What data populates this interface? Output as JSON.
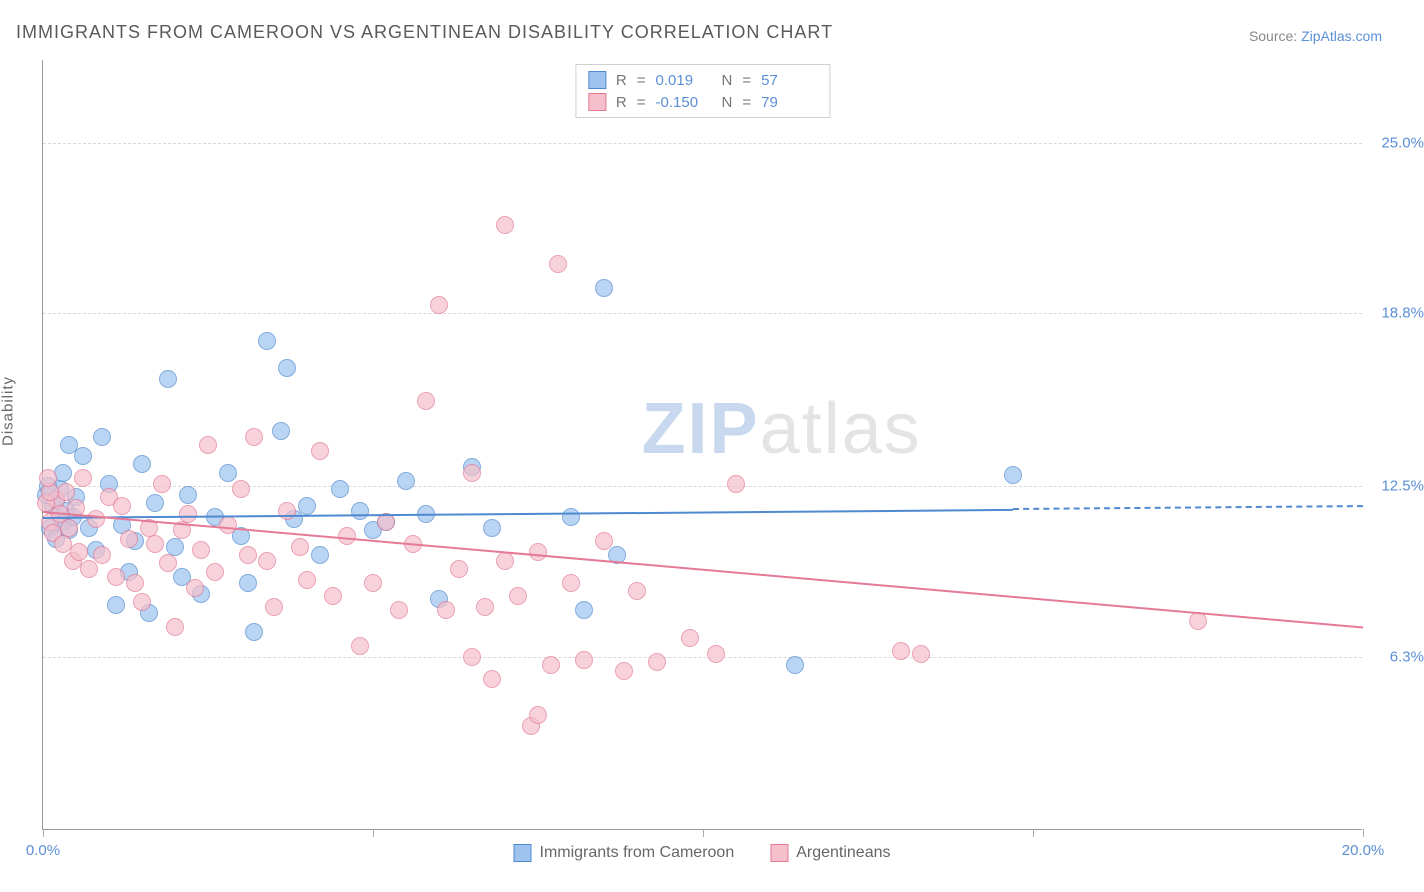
{
  "title": "IMMIGRANTS FROM CAMEROON VS ARGENTINEAN DISABILITY CORRELATION CHART",
  "source_prefix": "Source: ",
  "source_link": "ZipAtlas.com",
  "y_axis_label": "Disability",
  "watermark": {
    "zip": "ZIP",
    "atlas": "atlas"
  },
  "chart": {
    "type": "scatter",
    "xlim": [
      0,
      20
    ],
    "ylim": [
      0,
      28
    ],
    "y_gridlines": [
      6.3,
      12.5,
      18.8,
      25.0
    ],
    "y_tick_labels": [
      "6.3%",
      "12.5%",
      "18.8%",
      "25.0%"
    ],
    "x_ticks": [
      0,
      5,
      10,
      15,
      20
    ],
    "x_tick_labels": {
      "0": "0.0%",
      "20": "20.0%"
    },
    "grid_color": "#d8d8d8",
    "axis_color": "#999999",
    "background_color": "#ffffff",
    "tick_label_color": "#5b8fd6",
    "tick_label_fontsize": 15,
    "dot_radius": 9,
    "dot_border_width": 1.5,
    "dot_fill_opacity": 0.35,
    "series": [
      {
        "key": "cameroon",
        "label": "Immigrants from Cameroon",
        "color_fill": "#9ec3ee",
        "color_stroke": "#4f89d0",
        "R": "0.019",
        "N": "57",
        "trend": {
          "y_at_x0": 11.4,
          "y_at_x20": 11.8,
          "solid_until_x": 14.7
        },
        "points": [
          [
            0.1,
            11.0
          ],
          [
            0.15,
            11.8
          ],
          [
            0.2,
            12.0
          ],
          [
            0.2,
            10.6
          ],
          [
            0.25,
            12.4
          ],
          [
            0.3,
            13.0
          ],
          [
            0.3,
            11.2
          ],
          [
            0.35,
            11.6
          ],
          [
            0.4,
            14.0
          ],
          [
            0.4,
            10.9
          ],
          [
            0.45,
            11.4
          ],
          [
            0.5,
            12.1
          ],
          [
            0.6,
            13.6
          ],
          [
            0.7,
            11.0
          ],
          [
            0.8,
            10.2
          ],
          [
            0.9,
            14.3
          ],
          [
            1.0,
            12.6
          ],
          [
            1.1,
            8.2
          ],
          [
            1.2,
            11.1
          ],
          [
            1.3,
            9.4
          ],
          [
            1.4,
            10.5
          ],
          [
            1.5,
            13.3
          ],
          [
            1.6,
            7.9
          ],
          [
            1.7,
            11.9
          ],
          [
            1.9,
            16.4
          ],
          [
            2.0,
            10.3
          ],
          [
            2.1,
            9.2
          ],
          [
            2.2,
            12.2
          ],
          [
            2.4,
            8.6
          ],
          [
            2.6,
            11.4
          ],
          [
            2.8,
            13.0
          ],
          [
            3.0,
            10.7
          ],
          [
            3.1,
            9.0
          ],
          [
            3.2,
            7.2
          ],
          [
            3.4,
            17.8
          ],
          [
            3.6,
            14.5
          ],
          [
            3.7,
            16.8
          ],
          [
            3.8,
            11.3
          ],
          [
            4.0,
            11.8
          ],
          [
            4.2,
            10.0
          ],
          [
            4.5,
            12.4
          ],
          [
            4.8,
            11.6
          ],
          [
            5.0,
            10.9
          ],
          [
            5.2,
            11.2
          ],
          [
            5.5,
            12.7
          ],
          [
            5.8,
            11.5
          ],
          [
            6.0,
            8.4
          ],
          [
            6.5,
            13.2
          ],
          [
            6.8,
            11.0
          ],
          [
            8.0,
            11.4
          ],
          [
            8.2,
            8.0
          ],
          [
            8.5,
            19.7
          ],
          [
            8.7,
            10.0
          ],
          [
            11.4,
            6.0
          ],
          [
            14.7,
            12.9
          ],
          [
            0.05,
            12.2
          ],
          [
            0.08,
            12.5
          ]
        ]
      },
      {
        "key": "argentineans",
        "label": "Argentineans",
        "color_fill": "#f5bfcb",
        "color_stroke": "#e47a96",
        "R": "-0.150",
        "N": "79",
        "trend": {
          "y_at_x0": 11.6,
          "y_at_x20": 7.4,
          "solid_until_x": 20
        },
        "points": [
          [
            0.1,
            11.2
          ],
          [
            0.15,
            10.8
          ],
          [
            0.2,
            12.0
          ],
          [
            0.25,
            11.5
          ],
          [
            0.3,
            10.4
          ],
          [
            0.35,
            12.3
          ],
          [
            0.4,
            11.0
          ],
          [
            0.45,
            9.8
          ],
          [
            0.5,
            11.7
          ],
          [
            0.55,
            10.1
          ],
          [
            0.6,
            12.8
          ],
          [
            0.7,
            9.5
          ],
          [
            0.8,
            11.3
          ],
          [
            0.9,
            10.0
          ],
          [
            1.0,
            12.1
          ],
          [
            1.1,
            9.2
          ],
          [
            1.2,
            11.8
          ],
          [
            1.3,
            10.6
          ],
          [
            1.4,
            9.0
          ],
          [
            1.5,
            8.3
          ],
          [
            1.6,
            11.0
          ],
          [
            1.7,
            10.4
          ],
          [
            1.8,
            12.6
          ],
          [
            1.9,
            9.7
          ],
          [
            2.0,
            7.4
          ],
          [
            2.1,
            10.9
          ],
          [
            2.2,
            11.5
          ],
          [
            2.3,
            8.8
          ],
          [
            2.4,
            10.2
          ],
          [
            2.5,
            14.0
          ],
          [
            2.6,
            9.4
          ],
          [
            2.8,
            11.1
          ],
          [
            3.0,
            12.4
          ],
          [
            3.1,
            10.0
          ],
          [
            3.2,
            14.3
          ],
          [
            3.4,
            9.8
          ],
          [
            3.5,
            8.1
          ],
          [
            3.7,
            11.6
          ],
          [
            3.9,
            10.3
          ],
          [
            4.0,
            9.1
          ],
          [
            4.2,
            13.8
          ],
          [
            4.4,
            8.5
          ],
          [
            4.6,
            10.7
          ],
          [
            4.8,
            6.7
          ],
          [
            5.0,
            9.0
          ],
          [
            5.2,
            11.2
          ],
          [
            5.4,
            8.0
          ],
          [
            5.6,
            10.4
          ],
          [
            5.8,
            15.6
          ],
          [
            6.0,
            19.1
          ],
          [
            6.1,
            8.0
          ],
          [
            6.3,
            9.5
          ],
          [
            6.5,
            13.0
          ],
          [
            6.5,
            6.3
          ],
          [
            6.7,
            8.1
          ],
          [
            6.8,
            5.5
          ],
          [
            7.0,
            9.8
          ],
          [
            7.0,
            22.0
          ],
          [
            7.2,
            8.5
          ],
          [
            7.4,
            3.8
          ],
          [
            7.5,
            10.1
          ],
          [
            7.5,
            4.2
          ],
          [
            7.7,
            6.0
          ],
          [
            7.8,
            20.6
          ],
          [
            8.0,
            9.0
          ],
          [
            8.2,
            6.2
          ],
          [
            8.5,
            10.5
          ],
          [
            8.8,
            5.8
          ],
          [
            9.0,
            8.7
          ],
          [
            9.3,
            6.1
          ],
          [
            9.8,
            7.0
          ],
          [
            10.2,
            6.4
          ],
          [
            10.5,
            12.6
          ],
          [
            13.0,
            6.5
          ],
          [
            13.3,
            6.4
          ],
          [
            0.05,
            11.9
          ],
          [
            0.1,
            12.3
          ],
          [
            0.08,
            12.8
          ],
          [
            17.5,
            7.6
          ]
        ]
      }
    ]
  },
  "legend_top": {
    "r_label": "R",
    "n_label": "N",
    "eq": "="
  }
}
